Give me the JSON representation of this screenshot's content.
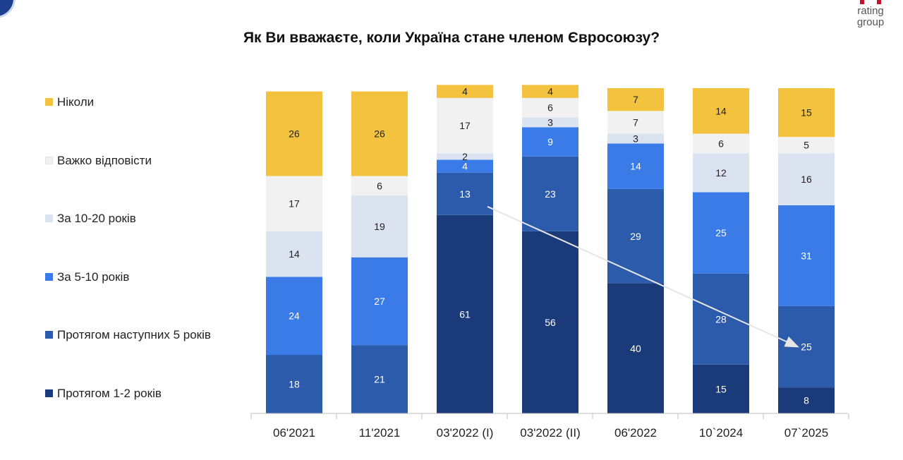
{
  "header": {
    "brand_text": "rating\ngroup"
  },
  "chart_data": {
    "type": "bar",
    "stacked": true,
    "title": "Як Ви вважаєте, коли Україна стане членом Євросоюзу?",
    "xlabel": "",
    "ylabel": "",
    "ylim": [
      0,
      100
    ],
    "legend_position": "left",
    "categories": [
      "06'2021",
      "11'2021",
      "03'2022 (І)",
      "03'2022 (ІІ)",
      "06'2022",
      "10`2024",
      "07`2025"
    ],
    "series": [
      {
        "name": "Протягом 1-2 років",
        "color": "#1b3a7a",
        "label_color": "#ffffff",
        "values": [
          0,
          0,
          61,
          56,
          40,
          15,
          8
        ]
      },
      {
        "name": "Протягом наступних 5 років",
        "color": "#2c5bac",
        "label_color": "#ffffff",
        "values": [
          18,
          21,
          13,
          23,
          29,
          28,
          25
        ]
      },
      {
        "name": "За 5-10 років",
        "color": "#3b7be8",
        "label_color": "#ffffff",
        "values": [
          24,
          27,
          4,
          9,
          14,
          25,
          31
        ]
      },
      {
        "name": "За 10-20 років",
        "color": "#dbe3f0",
        "label_color": "#222222",
        "values": [
          14,
          19,
          2,
          3,
          3,
          12,
          16
        ]
      },
      {
        "name": "Важко відповісти",
        "color": "#f1f1f1",
        "label_color": "#222222",
        "values": [
          17,
          6,
          17,
          6,
          7,
          6,
          5
        ]
      },
      {
        "name": "Ніколи",
        "color": "#f3c23f",
        "label_color": "#222222",
        "values": [
          26,
          26,
          4,
          4,
          7,
          14,
          15
        ]
      }
    ],
    "annotations": [
      {
        "type": "trend-arrow",
        "from_category": "03'2022 (І)",
        "to_category": "07`2025",
        "series": "Протягом наступних 5 років"
      }
    ]
  }
}
